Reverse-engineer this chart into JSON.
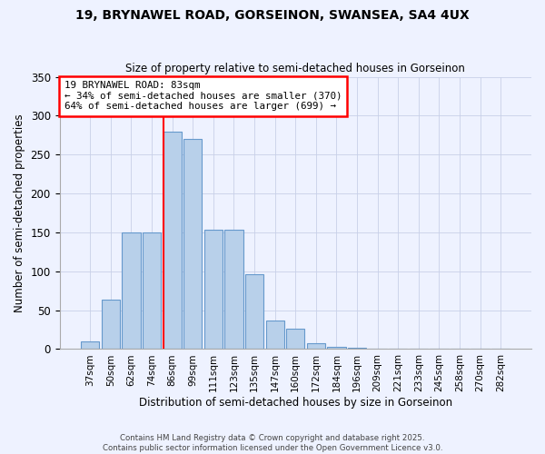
{
  "title1": "19, BRYNAWEL ROAD, GORSEINON, SWANSEA, SA4 4UX",
  "title2": "Size of property relative to semi-detached houses in Gorseinon",
  "xlabel": "Distribution of semi-detached houses by size in Gorseinon",
  "ylabel": "Number of semi-detached properties",
  "categories": [
    "37sqm",
    "50sqm",
    "62sqm",
    "74sqm",
    "86sqm",
    "99sqm",
    "111sqm",
    "123sqm",
    "135sqm",
    "147sqm",
    "160sqm",
    "172sqm",
    "184sqm",
    "196sqm",
    "209sqm",
    "221sqm",
    "233sqm",
    "245sqm",
    "258sqm",
    "270sqm",
    "282sqm"
  ],
  "values": [
    10,
    63,
    150,
    150,
    280,
    270,
    153,
    153,
    96,
    37,
    26,
    8,
    3,
    2,
    1,
    1,
    0,
    0,
    1,
    0,
    1
  ],
  "bar_color": "#b8d0ea",
  "bar_edge_color": "#6699cc",
  "vline_x": 4.0,
  "annotation_line1": "19 BRYNAWEL ROAD: 83sqm",
  "annotation_line2": "← 34% of semi-detached houses are smaller (370)",
  "annotation_line3": "64% of semi-detached houses are larger (699) →",
  "background_color": "#eef2ff",
  "grid_color": "#c8d0e8",
  "footer1": "Contains HM Land Registry data © Crown copyright and database right 2025.",
  "footer2": "Contains public sector information licensed under the Open Government Licence v3.0.",
  "ylim": [
    0,
    350
  ],
  "yticks": [
    0,
    50,
    100,
    150,
    200,
    250,
    300,
    350
  ]
}
